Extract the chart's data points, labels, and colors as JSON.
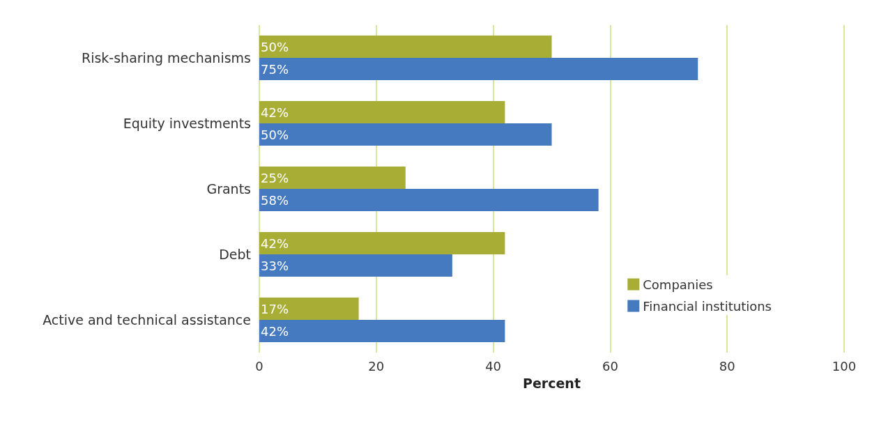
{
  "chart_data": {
    "type": "bar",
    "orientation": "horizontal",
    "categories": [
      "Risk-sharing mechanisms",
      "Equity investments",
      "Grants",
      "Debt",
      "Active and technical assistance"
    ],
    "series": [
      {
        "name": "Companies",
        "color": "#a8ae35",
        "values": [
          50,
          42,
          25,
          42,
          17
        ],
        "value_labels": [
          "50%",
          "42%",
          "25%",
          "42%",
          "17%"
        ]
      },
      {
        "name": "Financial institutions",
        "color": "#467ac0",
        "values": [
          75,
          50,
          58,
          33,
          42
        ],
        "value_labels": [
          "75%",
          "50%",
          "58%",
          "33%",
          "42%"
        ]
      }
    ],
    "xlabel": "Percent",
    "xlim": [
      0,
      100
    ],
    "xticks": [
      0,
      20,
      40,
      60,
      80,
      100
    ],
    "grid": "x",
    "legend": "bottom right"
  }
}
